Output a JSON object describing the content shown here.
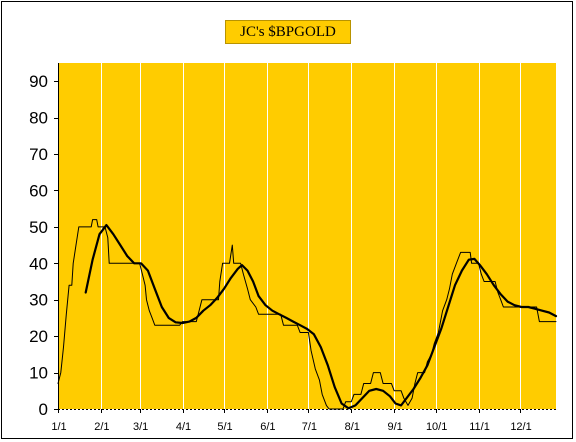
{
  "chart_data": {
    "type": "line",
    "title": "JC's $BPGOLD",
    "xlabel": "",
    "ylabel": "",
    "ylim": [
      0,
      95
    ],
    "yticks": [
      0,
      10,
      20,
      30,
      40,
      50,
      60,
      70,
      80,
      90
    ],
    "xlim": [
      0,
      360
    ],
    "xticks": [
      {
        "label": "1/1",
        "day": 0
      },
      {
        "label": "2/1",
        "day": 31
      },
      {
        "label": "3/1",
        "day": 59
      },
      {
        "label": "4/1",
        "day": 90
      },
      {
        "label": "5/1",
        "day": 120
      },
      {
        "label": "6/1",
        "day": 151
      },
      {
        "label": "7/1",
        "day": 181
      },
      {
        "label": "8/1",
        "day": 212
      },
      {
        "label": "9/1",
        "day": 243
      },
      {
        "label": "10/1",
        "day": 273
      },
      {
        "label": "11/1",
        "day": 304
      },
      {
        "label": "12/1",
        "day": 334
      }
    ],
    "plot_background": "#ffcc00",
    "grid": "vertical-white",
    "legend": "none",
    "series": [
      {
        "style": "step-thin",
        "color": "#000000",
        "points": [
          [
            0,
            7
          ],
          [
            2,
            10
          ],
          [
            4,
            17
          ],
          [
            6,
            26
          ],
          [
            8,
            34
          ],
          [
            10,
            34
          ],
          [
            11,
            40
          ],
          [
            13,
            45
          ],
          [
            15,
            50
          ],
          [
            24,
            50
          ],
          [
            25,
            52
          ],
          [
            28,
            52
          ],
          [
            29,
            50
          ],
          [
            34,
            50
          ],
          [
            36,
            47
          ],
          [
            37,
            40
          ],
          [
            59,
            40
          ],
          [
            61,
            37
          ],
          [
            63,
            34
          ],
          [
            64,
            30
          ],
          [
            66,
            27
          ],
          [
            68,
            25
          ],
          [
            70,
            23
          ],
          [
            88,
            23
          ],
          [
            90,
            24
          ],
          [
            100,
            24
          ],
          [
            102,
            27
          ],
          [
            104,
            30
          ],
          [
            116,
            30
          ],
          [
            117,
            35
          ],
          [
            119,
            40
          ],
          [
            124,
            40
          ],
          [
            126,
            45
          ],
          [
            127,
            40
          ],
          [
            132,
            40
          ],
          [
            134,
            37
          ],
          [
            137,
            33
          ],
          [
            139,
            30
          ],
          [
            143,
            28
          ],
          [
            145,
            26
          ],
          [
            161,
            26
          ],
          [
            163,
            23
          ],
          [
            173,
            23
          ],
          [
            175,
            21
          ],
          [
            181,
            21
          ],
          [
            183,
            16
          ],
          [
            186,
            11
          ],
          [
            189,
            8
          ],
          [
            191,
            4
          ],
          [
            194,
            1
          ],
          [
            196,
            0
          ],
          [
            206,
            0
          ],
          [
            208,
            2
          ],
          [
            212,
            2
          ],
          [
            214,
            4
          ],
          [
            219,
            4
          ],
          [
            221,
            7
          ],
          [
            226,
            7
          ],
          [
            228,
            10
          ],
          [
            233,
            10
          ],
          [
            235,
            7
          ],
          [
            241,
            7
          ],
          [
            243,
            5
          ],
          [
            248,
            5
          ],
          [
            250,
            3
          ],
          [
            253,
            1
          ],
          [
            256,
            3
          ],
          [
            258,
            7
          ],
          [
            260,
            10
          ],
          [
            265,
            10
          ],
          [
            267,
            13
          ],
          [
            270,
            15
          ],
          [
            272,
            18
          ],
          [
            275,
            21
          ],
          [
            278,
            27
          ],
          [
            281,
            30
          ],
          [
            283,
            33
          ],
          [
            285,
            37
          ],
          [
            288,
            40
          ],
          [
            291,
            43
          ],
          [
            298,
            43
          ],
          [
            299,
            40
          ],
          [
            304,
            40
          ],
          [
            306,
            37
          ],
          [
            308,
            35
          ],
          [
            316,
            35
          ],
          [
            318,
            32
          ],
          [
            320,
            30
          ],
          [
            322,
            28
          ],
          [
            346,
            28
          ],
          [
            348,
            24
          ],
          [
            360,
            24
          ]
        ]
      },
      {
        "style": "smooth-thick",
        "color": "#000000",
        "points": [
          [
            20,
            32
          ],
          [
            25,
            41
          ],
          [
            30,
            48
          ],
          [
            35,
            50.5
          ],
          [
            40,
            48
          ],
          [
            45,
            45
          ],
          [
            50,
            42
          ],
          [
            55,
            40
          ],
          [
            60,
            40
          ],
          [
            65,
            38
          ],
          [
            70,
            33
          ],
          [
            75,
            28
          ],
          [
            80,
            25
          ],
          [
            85,
            23.8
          ],
          [
            90,
            23.6
          ],
          [
            95,
            24
          ],
          [
            100,
            25
          ],
          [
            105,
            27
          ],
          [
            110,
            28.5
          ],
          [
            115,
            30.5
          ],
          [
            120,
            33
          ],
          [
            125,
            36
          ],
          [
            130,
            38.5
          ],
          [
            133,
            39.5
          ],
          [
            137,
            38
          ],
          [
            141,
            35
          ],
          [
            145,
            31
          ],
          [
            150,
            28.5
          ],
          [
            155,
            27
          ],
          [
            160,
            26
          ],
          [
            165,
            25
          ],
          [
            170,
            24
          ],
          [
            175,
            23
          ],
          [
            180,
            22
          ],
          [
            185,
            20.5
          ],
          [
            190,
            17
          ],
          [
            195,
            12
          ],
          [
            200,
            6
          ],
          [
            205,
            1.5
          ],
          [
            210,
            0.2
          ],
          [
            215,
            1
          ],
          [
            220,
            3
          ],
          [
            225,
            5
          ],
          [
            230,
            5.5
          ],
          [
            235,
            5
          ],
          [
            240,
            3.5
          ],
          [
            244,
            1.5
          ],
          [
            248,
            1
          ],
          [
            252,
            3
          ],
          [
            257,
            5.5
          ],
          [
            262,
            8.5
          ],
          [
            267,
            12
          ],
          [
            272,
            17
          ],
          [
            277,
            22
          ],
          [
            282,
            28
          ],
          [
            287,
            34
          ],
          [
            292,
            38
          ],
          [
            297,
            41
          ],
          [
            301,
            41.2
          ],
          [
            305,
            39.5
          ],
          [
            310,
            37
          ],
          [
            315,
            34
          ],
          [
            320,
            31.5
          ],
          [
            325,
            29.5
          ],
          [
            330,
            28.5
          ],
          [
            335,
            28
          ],
          [
            340,
            28
          ],
          [
            345,
            27.5
          ],
          [
            350,
            27
          ],
          [
            355,
            26.5
          ],
          [
            360,
            25.5
          ]
        ]
      }
    ]
  }
}
